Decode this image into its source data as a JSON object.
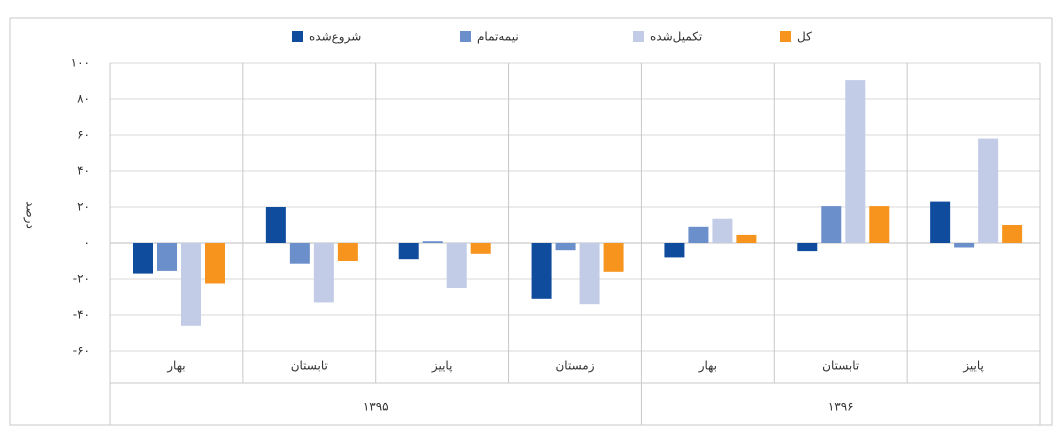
{
  "chart_data": {
    "type": "bar",
    "y_label": "درصد",
    "groups": [
      {
        "label": "۱۳۹۵",
        "categories": [
          "بهار",
          "تابستان",
          "پاییز",
          "زمستان"
        ]
      },
      {
        "label": "۱۳۹۶",
        "categories": [
          "بهار",
          "تابستان",
          "پاییز"
        ]
      }
    ],
    "series": [
      {
        "name": "شروع‌شده",
        "color": "#0f4c9e",
        "values": [
          -17,
          20,
          -9,
          -31,
          -8,
          -4.5,
          23
        ]
      },
      {
        "name": "نیمه‌تمام",
        "color": "#6b8fca",
        "values": [
          -15.5,
          -11.5,
          1,
          -4,
          9,
          20.5,
          -2.5
        ]
      },
      {
        "name": "تکمیل‌شده",
        "color": "#c2cce6",
        "values": [
          -46,
          -33,
          -25,
          -34,
          13.5,
          90.5,
          58
        ]
      },
      {
        "name": "کل",
        "color": "#f7941d",
        "values": [
          -22.5,
          -10,
          -6,
          -16,
          4.5,
          20.5,
          10
        ]
      }
    ],
    "ylim": [
      -60,
      100
    ],
    "yticks": [
      {
        "value": 100,
        "label": "۱۰۰"
      },
      {
        "value": 80,
        "label": "۸۰"
      },
      {
        "value": 60,
        "label": "۶۰"
      },
      {
        "value": 40,
        "label": "۴۰"
      },
      {
        "value": 20,
        "label": "۲۰"
      },
      {
        "value": 0,
        "label": "۰"
      },
      {
        "value": -20,
        "label": "-۲۰"
      },
      {
        "value": -40,
        "label": "-۴۰"
      },
      {
        "value": -60,
        "label": "-۶۰"
      }
    ],
    "grid": true
  }
}
